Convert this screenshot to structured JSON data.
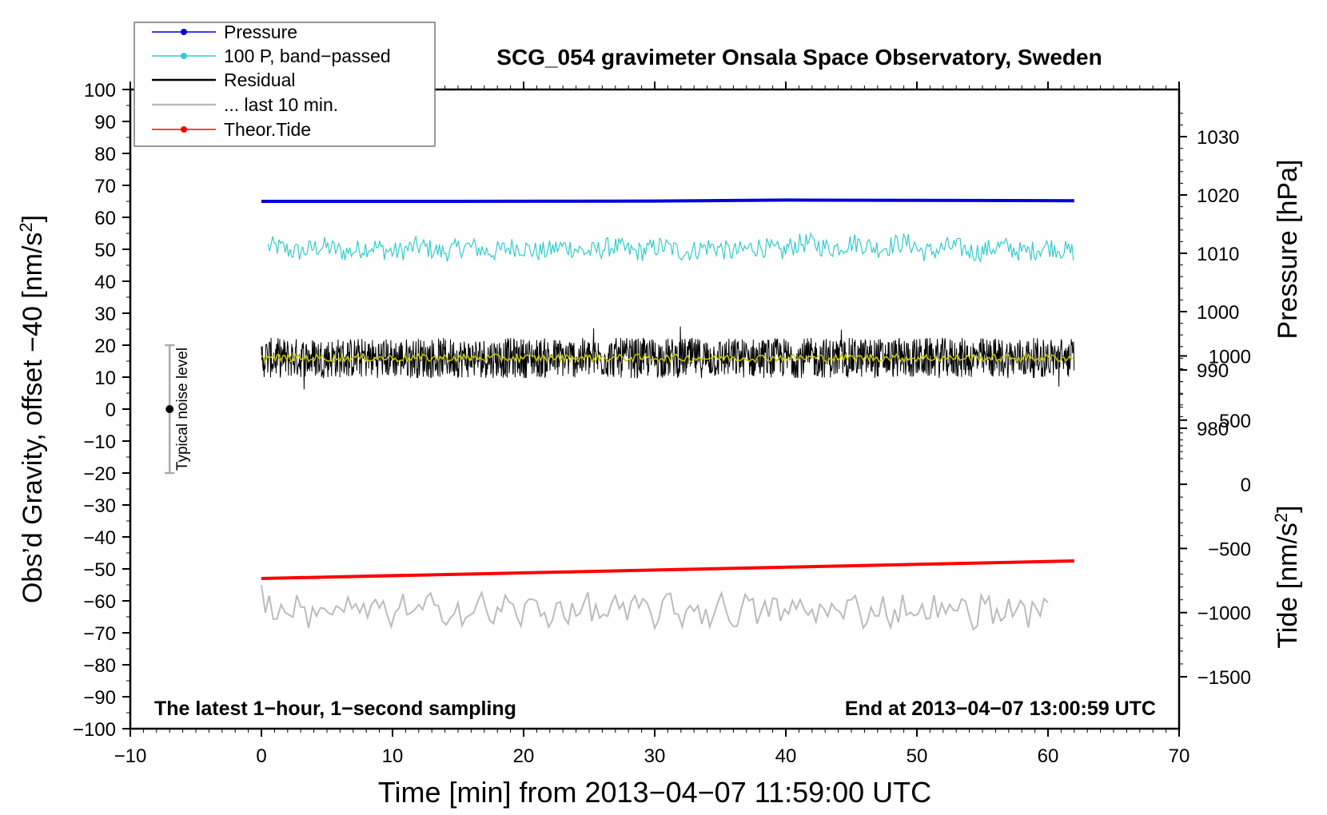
{
  "chart_data": {
    "type": "line",
    "title": "SCG_054 gravimeter Onsala Space Observatory, Sweden",
    "xlabel": "Time [min] from 2013−04−07 11:59:00 UTC",
    "ylabel_left": {
      "main": "Obs’d Gravity, offset −40 [nm/s",
      "sup": "2",
      "end": "]"
    },
    "ylabel_right_pressure": "Pressure [hPa]",
    "ylabel_right_tide": {
      "main": "Tide [nm/s",
      "sup": "2",
      "end": "]"
    },
    "xlim": [
      -10,
      70
    ],
    "ylim": [
      -100,
      100
    ],
    "x_ticks": [
      -10,
      0,
      10,
      20,
      30,
      40,
      50,
      60,
      70
    ],
    "x_tick_labels": [
      "−10",
      "0",
      "10",
      "20",
      "30",
      "40",
      "50",
      "60",
      "70"
    ],
    "y_ticks": [
      100,
      90,
      80,
      70,
      60,
      50,
      40,
      30,
      20,
      10,
      0,
      -10,
      -20,
      -30,
      -40,
      -50,
      -60,
      -70,
      -80,
      -90,
      -100
    ],
    "y_tick_labels": [
      "100",
      "90",
      "80",
      "70",
      "60",
      "50",
      "40",
      "30",
      "20",
      "10",
      "0",
      "−10",
      "−20",
      "−30",
      "−40",
      "−50",
      "−60",
      "−70",
      "−80",
      "−90",
      "−100"
    ],
    "pressure_axis": {
      "ticks": [
        980,
        990,
        1000,
        1010,
        1020,
        1030
      ],
      "labels": [
        "980",
        "990",
        "1000",
        "1010",
        "1020",
        "1030"
      ]
    },
    "tide_axis": {
      "ticks": [
        -1500,
        -1000,
        -500,
        0,
        500,
        1000
      ],
      "labels": [
        "−1500",
        "−1000",
        "−500",
        "0",
        "500",
        "1000"
      ]
    },
    "legend_position": "top-left",
    "series": [
      {
        "name": "Pressure",
        "color": "#0000dd",
        "x": [
          0,
          15,
          30,
          40,
          50,
          62
        ],
        "y": [
          65.0,
          65.0,
          65.1,
          65.4,
          65.3,
          65.2
        ]
      },
      {
        "name": "100 P, band−passed",
        "color": "#33cccc",
        "center": 50.0,
        "amplitude": 4.0,
        "x_range": [
          0.5,
          62
        ]
      },
      {
        "name": "Residual",
        "color": "#000000",
        "center": 16.0,
        "amplitude": 9.0,
        "x_range": [
          0,
          62
        ]
      },
      {
        "name": "... last 10 min.",
        "color": "#bbbbbb",
        "center": -63.0,
        "amplitude": 6.0,
        "x_range": [
          0,
          60
        ]
      },
      {
        "name": "Theor.Tide",
        "color": "#ff0000",
        "x": [
          0,
          62
        ],
        "y": [
          -53.0,
          -47.5
        ]
      }
    ],
    "residual_smooth": {
      "color": "#cccc00",
      "center": 16.0,
      "amplitude": 1.2
    },
    "noise_level": {
      "label": "Typical noise level",
      "x": -7,
      "y": 0,
      "low": -20,
      "high": 20
    },
    "annotation_left": "The latest 1−hour, 1−second sampling",
    "annotation_right": "End at 2013−04−07 13:00:59 UTC"
  }
}
